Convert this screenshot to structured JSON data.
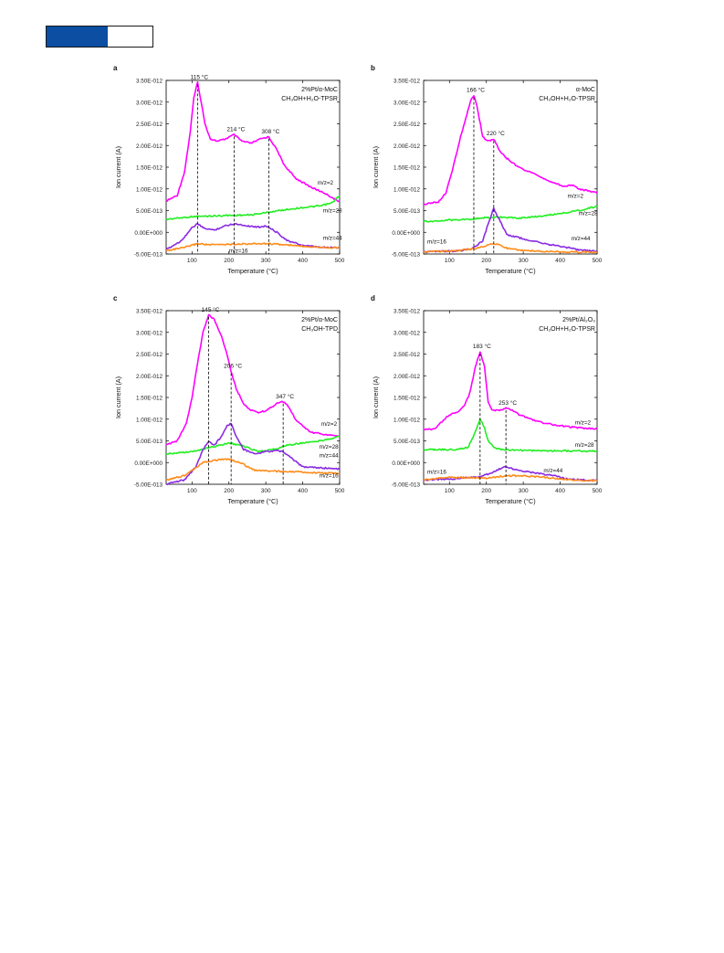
{
  "chart_data": [
    {
      "type": "line",
      "panel": "a",
      "title_lines": [
        "2%Pt/α-MoC",
        "CH₃OH+H₂O-TPSR"
      ],
      "xlabel": "Temperature (°C)",
      "ylabel": "Ion current (A)",
      "xlim": [
        30,
        500
      ],
      "ylim": [
        -5e-13,
        3.5e-12
      ],
      "x_ticks": [
        100,
        200,
        300,
        400,
        500
      ],
      "y_ticks": [
        -5e-13,
        0,
        5e-13,
        1e-12,
        1.5e-12,
        2e-12,
        2.5e-12,
        3e-12,
        3.5e-12
      ],
      "y_tick_labels": [
        "-5.00E-013",
        "0.00E+000",
        "5.00E-013",
        "1.00E-012",
        "1.50E-012",
        "2.00E-012",
        "2.50E-012",
        "3.00E-012",
        "3.50E-012"
      ],
      "series": [
        {
          "name": "m/z=2",
          "color": "#ff00ff",
          "x": [
            30,
            60,
            80,
            95,
            105,
            115,
            125,
            135,
            150,
            170,
            190,
            214,
            235,
            260,
            285,
            308,
            330,
            350,
            380,
            420,
            460,
            500
          ],
          "y": [
            7.2e-13,
            8.5e-13,
            1.4e-12,
            2.3e-12,
            3.1e-12,
            3.45e-12,
            3e-12,
            2.5e-12,
            2.15e-12,
            2.1e-12,
            2.15e-12,
            2.25e-12,
            2.1e-12,
            2.05e-12,
            2.15e-12,
            2.2e-12,
            1.9e-12,
            1.55e-12,
            1.25e-12,
            1.05e-12,
            9e-13,
            7e-13
          ]
        },
        {
          "name": "m/z=28",
          "color": "#22ee22",
          "x": [
            30,
            100,
            200,
            260,
            320,
            360,
            400,
            450,
            480,
            500
          ],
          "y": [
            3e-13,
            3.6e-13,
            3.9e-13,
            4e-13,
            4.8e-13,
            5.3e-13,
            5.7e-13,
            6.1e-13,
            6.8e-13,
            8.5e-13
          ]
        },
        {
          "name": "m/z=44",
          "color": "#8a2be2",
          "x": [
            30,
            70,
            100,
            115,
            130,
            160,
            190,
            214,
            250,
            280,
            300,
            330,
            360,
            400,
            450,
            500
          ],
          "y": [
            -4e-13,
            -2e-13,
            1e-13,
            2e-13,
            1e-13,
            5e-14,
            1.5e-13,
            2e-13,
            1.5e-13,
            1.2e-13,
            1.5e-13,
            0,
            -2e-13,
            -3e-13,
            -3.5e-13,
            -3.5e-13
          ]
        },
        {
          "name": "m/z=16",
          "color": "#ff8c1a",
          "x": [
            30,
            80,
            115,
            150,
            214,
            308,
            400,
            500
          ],
          "y": [
            -4.2e-13,
            -3.5e-13,
            -2.6e-13,
            -2.9e-13,
            -2.7e-13,
            -2.6e-13,
            -3.2e-13,
            -3.6e-13
          ]
        }
      ],
      "peaks": [
        {
          "x": 115,
          "y": 3.45e-12,
          "label": "115 °C"
        },
        {
          "x": 214,
          "y": 2.25e-12,
          "label": "214 °C"
        },
        {
          "x": 308,
          "y": 2.2e-12,
          "label": "308 °C"
        }
      ],
      "series_labels": [
        {
          "text": "m/z=2",
          "x": 440,
          "y": 1.1e-12
        },
        {
          "text": "m/z=28",
          "x": 455,
          "y": 4.6e-13
        },
        {
          "text": "m/z=44",
          "x": 455,
          "y": -1.7e-13
        },
        {
          "text": "m/z=16",
          "x": 200,
          "y": -4.7e-13
        }
      ]
    },
    {
      "type": "line",
      "panel": "b",
      "title_lines": [
        "α-MoC",
        "CH₃OH+H₂O-TPSR"
      ],
      "xlabel": "Temperature (°C)",
      "ylabel": "Ion current (A)",
      "xlim": [
        30,
        500
      ],
      "ylim": [
        -5e-13,
        3.5e-12
      ],
      "x_ticks": [
        100,
        200,
        300,
        400,
        500
      ],
      "y_ticks": [
        -5e-13,
        0,
        5e-13,
        1e-12,
        1.5e-12,
        2e-12,
        2.5e-12,
        3e-12,
        3.5e-12
      ],
      "y_tick_labels": [
        "-5.00E-013",
        "0.00E+000",
        "5.00E-013",
        "1.00E-012",
        "1.50E-012",
        "2.00E-012",
        "2.50E-012",
        "3.00E-012",
        "3.50E-012"
      ],
      "series": [
        {
          "name": "m/z=2",
          "color": "#ff00ff",
          "x": [
            30,
            70,
            90,
            110,
            130,
            150,
            160,
            166,
            175,
            190,
            205,
            220,
            235,
            250,
            270,
            300,
            340,
            380,
            410,
            430,
            450,
            480,
            500
          ],
          "y": [
            6.5e-13,
            7e-13,
            9e-13,
            1.5e-12,
            2.2e-12,
            2.8e-12,
            3.1e-12,
            3.15e-12,
            2.9e-12,
            2.2e-12,
            2.1e-12,
            2.15e-12,
            1.9e-12,
            1.75e-12,
            1.6e-12,
            1.45e-12,
            1.3e-12,
            1.15e-12,
            1.05e-12,
            1.1e-12,
            1e-12,
            9.5e-13,
            9e-13
          ]
        },
        {
          "name": "m/z=28",
          "color": "#22ee22",
          "x": [
            30,
            100,
            180,
            220,
            260,
            300,
            350,
            400,
            450,
            500
          ],
          "y": [
            2.5e-13,
            2.8e-13,
            3.2e-13,
            3.5e-13,
            3.4e-13,
            3.3e-13,
            3.8e-13,
            4.3e-13,
            5e-13,
            6e-13
          ]
        },
        {
          "name": "m/z=44",
          "color": "#8a2be2",
          "x": [
            30,
            120,
            160,
            190,
            205,
            220,
            235,
            255,
            300,
            350,
            400,
            450,
            500
          ],
          "y": [
            -4.5e-13,
            -4.3e-13,
            -3.8e-13,
            -2e-13,
            2e-13,
            5.5e-13,
            3e-13,
            -5e-14,
            -1.5e-13,
            -2.5e-13,
            -3.2e-13,
            -4e-13,
            -4.4e-13
          ]
        },
        {
          "name": "m/z=16",
          "color": "#ff8c1a",
          "x": [
            30,
            120,
            180,
            200,
            220,
            240,
            260,
            300,
            400,
            500
          ],
          "y": [
            -4.5e-13,
            -4.3e-13,
            -3.6e-13,
            -3e-13,
            -2.6e-13,
            -3e-13,
            -3.8e-13,
            -4.2e-13,
            -4.5e-13,
            -4.6e-13
          ]
        }
      ],
      "peaks": [
        {
          "x": 166,
          "y": 3.15e-12,
          "label": "166 °C"
        },
        {
          "x": 220,
          "y": 2.15e-12,
          "label": "220 °C"
        }
      ],
      "series_labels": [
        {
          "text": "m/z=2",
          "x": 420,
          "y": 8e-13
        },
        {
          "text": "m/z=28",
          "x": 450,
          "y": 3.9e-13
        },
        {
          "text": "m/z=44",
          "x": 430,
          "y": -1.8e-13
        },
        {
          "text": "m/z=16",
          "x": 40,
          "y": -2.6e-13
        }
      ]
    },
    {
      "type": "line",
      "panel": "c",
      "title_lines": [
        "2%Pt/α-MoC",
        "CH₃OH-TPD"
      ],
      "xlabel": "Temperature (°C)",
      "ylabel": "Ion current (A)",
      "xlim": [
        30,
        500
      ],
      "ylim": [
        -5e-13,
        3.5e-12
      ],
      "x_ticks": [
        100,
        200,
        300,
        400,
        500
      ],
      "y_ticks": [
        -5e-13,
        0,
        5e-13,
        1e-12,
        1.5e-12,
        2e-12,
        2.5e-12,
        3e-12,
        3.5e-12
      ],
      "y_tick_labels": [
        "-5.00E-013",
        "0.00E+000",
        "5.00E-013",
        "1.00E-012",
        "1.50E-012",
        "2.00E-012",
        "2.50E-012",
        "3.00E-012",
        "3.50E-012"
      ],
      "series": [
        {
          "name": "m/z=2",
          "color": "#ff00ff",
          "x": [
            30,
            60,
            85,
            100,
            115,
            130,
            145,
            160,
            180,
            195,
            206,
            220,
            240,
            260,
            280,
            300,
            320,
            335,
            347,
            360,
            380,
            420,
            460,
            500
          ],
          "y": [
            4e-13,
            5e-13,
            9e-13,
            1.5e-12,
            2.3e-12,
            3e-12,
            3.4e-12,
            3.3e-12,
            2.9e-12,
            2.5e-12,
            2.1e-12,
            1.7e-12,
            1.35e-12,
            1.2e-12,
            1.15e-12,
            1.2e-12,
            1.3e-12,
            1.38e-12,
            1.4e-12,
            1.3e-12,
            1e-12,
            7e-13,
            6.5e-13,
            6e-13
          ]
        },
        {
          "name": "m/z=28",
          "color": "#22ee22",
          "x": [
            30,
            100,
            150,
            200,
            240,
            280,
            320,
            360,
            400,
            450,
            500
          ],
          "y": [
            2e-13,
            2.5e-13,
            3.5e-13,
            4.5e-13,
            3.8e-13,
            2.5e-13,
            3e-13,
            4e-13,
            4.5e-13,
            5e-13,
            6e-13
          ]
        },
        {
          "name": "m/z=44",
          "color": "#8a2be2",
          "x": [
            30,
            80,
            110,
            130,
            145,
            160,
            180,
            195,
            206,
            220,
            240,
            270,
            300,
            330,
            347,
            370,
            400,
            450,
            500
          ],
          "y": [
            -5e-13,
            -4e-13,
            -1e-13,
            3e-13,
            5e-13,
            4e-13,
            6e-13,
            8.5e-13,
            9e-13,
            6e-13,
            3e-13,
            2e-13,
            2.5e-13,
            2.8e-13,
            2.5e-13,
            1e-13,
            -1e-13,
            -1.2e-13,
            -1.5e-13
          ]
        },
        {
          "name": "m/z=16",
          "color": "#ff8c1a",
          "x": [
            30,
            80,
            130,
            160,
            200,
            230,
            270,
            330,
            400,
            450,
            500
          ],
          "y": [
            -4e-13,
            -3e-13,
            0,
            5e-14,
            8e-14,
            0,
            -1.8e-13,
            -2e-13,
            -2.2e-13,
            -2.4e-13,
            -2.5e-13
          ]
        }
      ],
      "peaks": [
        {
          "x": 145,
          "y": 3.4e-12,
          "label": "145 °C"
        },
        {
          "x": 206,
          "y": 2.1e-12,
          "label": "206 °C"
        },
        {
          "x": 347,
          "y": 1.4e-12,
          "label": "347 °C"
        }
      ],
      "series_labels": [
        {
          "text": "m/z=2",
          "x": 450,
          "y": 8.5e-13
        },
        {
          "text": "m/z=28",
          "x": 445,
          "y": 3.2e-13
        },
        {
          "text": "m/z=44",
          "x": 445,
          "y": 1.2e-13
        },
        {
          "text": "m/z=16",
          "x": 445,
          "y": -3.4e-13
        }
      ]
    },
    {
      "type": "line",
      "panel": "d",
      "title_lines": [
        "2%Pt/Al₂O₃",
        "CH₃OH+H₂O-TPSR"
      ],
      "xlabel": "Temperature (°C)",
      "ylabel": "Ion current (A)",
      "xlim": [
        30,
        500
      ],
      "ylim": [
        -5e-13,
        3.5e-12
      ],
      "x_ticks": [
        100,
        200,
        300,
        400,
        500
      ],
      "y_ticks": [
        -5e-13,
        0,
        5e-13,
        1e-12,
        1.5e-12,
        2e-12,
        2.5e-12,
        3e-12,
        3.5e-12
      ],
      "y_tick_labels": [
        "-5.00E-013",
        "0.00E+000",
        "5.00E-013",
        "1.00E-012",
        "1.50E-012",
        "2.00E-012",
        "2.50E-012",
        "3.00E-012",
        "3.50E-012"
      ],
      "series": [
        {
          "name": "m/z=2",
          "color": "#ff00ff",
          "x": [
            30,
            60,
            80,
            100,
            120,
            140,
            155,
            170,
            183,
            195,
            205,
            215,
            230,
            253,
            270,
            290,
            320,
            360,
            400,
            450,
            500
          ],
          "y": [
            7.5e-13,
            7.8e-13,
            9.5e-13,
            1.1e-12,
            1.15e-12,
            1.3e-12,
            1.6e-12,
            2.2e-12,
            2.55e-12,
            2.2e-12,
            1.4e-12,
            1.2e-12,
            1.2e-12,
            1.25e-12,
            1.2e-12,
            1.1e-12,
            1e-12,
            9e-13,
            8.5e-13,
            8e-13,
            7.8e-13
          ]
        },
        {
          "name": "m/z=28",
          "color": "#22ee22",
          "x": [
            30,
            120,
            150,
            170,
            183,
            195,
            205,
            220,
            240,
            300,
            400,
            500
          ],
          "y": [
            3e-13,
            3e-13,
            3.5e-13,
            7e-13,
            1e-12,
            8e-13,
            5e-13,
            3.5e-13,
            3e-13,
            2.8e-13,
            2.7e-13,
            2.6e-13
          ]
        },
        {
          "name": "m/z=44",
          "color": "#8a2be2",
          "x": [
            30,
            100,
            180,
            210,
            235,
            253,
            275,
            300,
            340,
            380,
            420,
            460,
            500
          ],
          "y": [
            -4e-13,
            -3.8e-13,
            -3.3e-13,
            -2.5e-13,
            -1.5e-13,
            -1e-13,
            -1.5e-13,
            -2e-13,
            -2.5e-13,
            -3e-13,
            -3.8e-13,
            -4e-13,
            -4.1e-13
          ]
        },
        {
          "name": "m/z=16",
          "color": "#ff8c1a",
          "x": [
            30,
            80,
            120,
            200,
            253,
            300,
            350,
            400,
            450,
            500
          ],
          "y": [
            -4e-13,
            -3.5e-13,
            -3.4e-13,
            -3.6e-13,
            -3e-13,
            -3.1e-13,
            -3.3e-13,
            -3.8e-13,
            -4.1e-13,
            -4.2e-13
          ]
        }
      ],
      "peaks": [
        {
          "x": 183,
          "y": 2.55e-12,
          "label": "183 °C"
        },
        {
          "x": 253,
          "y": 1.25e-12,
          "label": "253 °C"
        }
      ],
      "series_labels": [
        {
          "text": "m/z=2",
          "x": 440,
          "y": 8.8e-13
        },
        {
          "text": "m/z=28",
          "x": 440,
          "y": 3.6e-13
        },
        {
          "text": "m/z=44",
          "x": 355,
          "y": -2.3e-13
        },
        {
          "text": "m/z=16",
          "x": 40,
          "y": -2.6e-13
        }
      ]
    }
  ]
}
